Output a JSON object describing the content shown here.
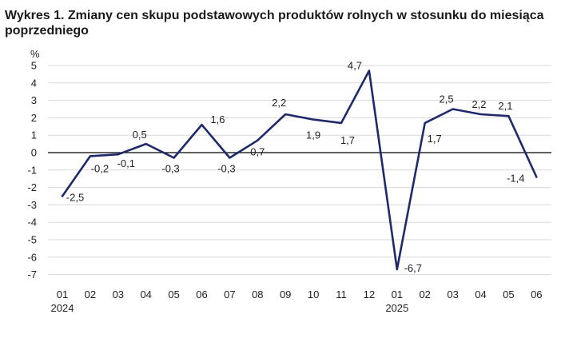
{
  "title": "Wykres 1. Zmiany cen skupu podstawowych produktów rolnych w stosunku do miesiąca poprzedniego",
  "chart_data": {
    "type": "line",
    "title": "Wykres 1. Zmiany cen skupu podstawowych produktów rolnych w stosunku do miesiąca poprzedniego",
    "ylabel": "%",
    "xlabel": "",
    "ylim": [
      -7,
      5
    ],
    "yticks": [
      5,
      4,
      3,
      2,
      1,
      0,
      -1,
      -2,
      -3,
      -4,
      -5,
      -6,
      -7
    ],
    "categories": [
      "01",
      "02",
      "03",
      "04",
      "05",
      "06",
      "07",
      "08",
      "09",
      "10",
      "11",
      "12",
      "01",
      "02",
      "03",
      "04",
      "05",
      "06"
    ],
    "year_labels": [
      {
        "index": 0,
        "label": "2024"
      },
      {
        "index": 12,
        "label": "2025"
      }
    ],
    "series": [
      {
        "values": [
          -2.5,
          -0.2,
          -0.1,
          0.5,
          -0.3,
          1.6,
          -0.3,
          0.7,
          2.2,
          1.9,
          1.7,
          4.7,
          -6.7,
          1.7,
          2.5,
          2.2,
          2.1,
          -1.4
        ],
        "labels": [
          "-2,5",
          "-0,2",
          "-0,1",
          "0,5",
          "-0,3",
          "1,6",
          "-0,3",
          "0,7",
          "2,2",
          "1,9",
          "1,7",
          "4,7",
          "-6,7",
          "1,7",
          "2,5",
          "2,2",
          "2,1",
          "-1,4"
        ],
        "color": "#1f2a6b"
      }
    ],
    "grid": true,
    "zero_line": true,
    "legend": "none"
  }
}
